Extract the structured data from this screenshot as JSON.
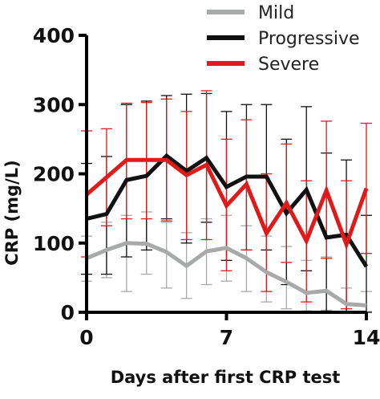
{
  "chart_data": {
    "type": "line",
    "xlabel": "Days after first CRP test",
    "ylabel": "CRP (mg/L)",
    "xlim": [
      0,
      14
    ],
    "ylim": [
      0,
      400
    ],
    "xticks": [
      0,
      7,
      14
    ],
    "yticks": [
      0,
      100,
      200,
      300,
      400
    ],
    "grid": false,
    "legend_position": "top-right",
    "x": [
      0,
      1,
      2,
      3,
      4,
      5,
      6,
      7,
      8,
      9,
      10,
      11,
      12,
      13,
      14
    ],
    "series": [
      {
        "name": "Mild",
        "color": "#a7aaa8",
        "values": [
          78,
          90,
          100,
          99,
          87,
          67,
          88,
          93,
          78,
          58,
          44,
          28,
          31,
          12,
          10
        ],
        "upper": [
          110,
          130,
          140,
          145,
          130,
          115,
          135,
          140,
          125,
          110,
          95,
          75,
          80,
          35,
          30
        ],
        "lower": [
          45,
          50,
          30,
          55,
          35,
          20,
          40,
          45,
          30,
          15,
          5,
          2,
          3,
          1,
          1
        ]
      },
      {
        "name": "Progressive",
        "color": "#111111",
        "values": [
          135,
          142,
          191,
          197,
          226,
          204,
          223,
          181,
          196,
          196,
          143,
          177,
          108,
          112,
          66
        ],
        "upper": [
          215,
          225,
          300,
          305,
          313,
          315,
          316,
          290,
          300,
          300,
          250,
          297,
          230,
          220,
          140
        ],
        "lower": [
          55,
          55,
          80,
          90,
          135,
          100,
          130,
          75,
          90,
          90,
          40,
          60,
          0,
          0,
          0
        ]
      },
      {
        "name": "Severe",
        "color": "#e0191b",
        "values": [
          170,
          195,
          220,
          220,
          220,
          198,
          213,
          154,
          185,
          114,
          158,
          103,
          176,
          98,
          179
        ],
        "upper": [
          262,
          265,
          302,
          303,
          308,
          290,
          320,
          250,
          278,
          200,
          243,
          190,
          276,
          190,
          273
        ],
        "lower": [
          80,
          125,
          135,
          135,
          132,
          105,
          105,
          60,
          90,
          30,
          72,
          15,
          78,
          5,
          85
        ]
      }
    ]
  }
}
